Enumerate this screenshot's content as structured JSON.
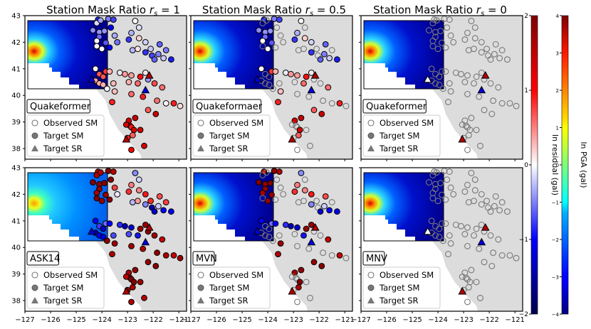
{
  "chart_data": {
    "type": "scatter",
    "description_axes": {
      "xlim": [
        -127,
        -120.7
      ],
      "ylim": [
        37.6,
        43
      ],
      "x_ticks": [
        "−127",
        "−126",
        "−125",
        "−124",
        "−123",
        "−122",
        "−121"
      ],
      "y_ticks": [
        "38",
        "39",
        "40",
        "41",
        "42",
        "43"
      ],
      "x_tick_values": [
        -127,
        -126,
        -125,
        -124,
        -123,
        -122,
        -121
      ],
      "y_tick_values": [
        38,
        39,
        40,
        41,
        42,
        43
      ]
    },
    "column_titles": [
      "Station Mask Ratio r_s = 1",
      "Station Mask Ratio r_s = 0.5",
      "Station Mask Ratio r_s = 0"
    ],
    "column_title_parts": [
      {
        "prefix": "Station Mask Ratio ",
        "var": "r",
        "sub": "s",
        "suffix": " = 1"
      },
      {
        "prefix": "Station Mask Ratio ",
        "var": "r",
        "sub": "s",
        "suffix": " = 0.5"
      },
      {
        "prefix": "Station Mask Ratio ",
        "var": "r",
        "sub": "s",
        "suffix": " = 0"
      }
    ],
    "panel_labels": [
      [
        "Quakeformer",
        "Quakeformaer",
        "Quakeformer"
      ],
      [
        "ASK14",
        "MVN",
        "MNV"
      ]
    ],
    "legend": [
      "Observed SM",
      "Target SM",
      "Target SR"
    ],
    "colorbars": [
      {
        "label": "ln residual (gal)",
        "range": [
          -2,
          2
        ],
        "ticks": [
          "−2",
          "−1",
          "0",
          "1",
          "2"
        ],
        "tick_values": [
          -2,
          -1,
          0,
          1,
          2
        ],
        "colormap": "seismic"
      },
      {
        "label": "ln PGA (gal)",
        "range": [
          -4,
          4
        ],
        "ticks": [
          "−4",
          "−3",
          "−2",
          "−1",
          "0",
          "1",
          "2",
          "3",
          "4"
        ],
        "tick_values": [
          -4,
          -3,
          -2,
          -1,
          0,
          1,
          2,
          3,
          4
        ],
        "colormap": "jet"
      }
    ],
    "stations": [
      [
        -124.15,
        42.85
      ],
      [
        -124.2,
        42.72
      ],
      [
        -124.05,
        42.82
      ],
      [
        -123.75,
        42.88
      ],
      [
        -123.55,
        42.85
      ],
      [
        -122.7,
        42.8
      ],
      [
        -122.55,
        42.55
      ],
      [
        -124.35,
        42.45
      ],
      [
        -124.1,
        42.38
      ],
      [
        -123.9,
        42.42
      ],
      [
        -123.65,
        42.55
      ],
      [
        -123.5,
        42.25
      ],
      [
        -122.85,
        42.35
      ],
      [
        -124.1,
        42.2
      ],
      [
        -124.2,
        42.05
      ],
      [
        -123.85,
        41.98
      ],
      [
        -123.4,
        42.0
      ],
      [
        -122.95,
        42.1
      ],
      [
        -122.55,
        42.15
      ],
      [
        -122.3,
        42.0
      ],
      [
        -124.2,
        41.85
      ],
      [
        -124.0,
        41.75
      ],
      [
        -123.7,
        41.8
      ],
      [
        -122.8,
        41.7
      ],
      [
        -122.6,
        41.75
      ],
      [
        -122.3,
        41.62
      ],
      [
        -122.1,
        41.75
      ],
      [
        -121.75,
        41.92
      ],
      [
        -121.5,
        41.7
      ],
      [
        -121.8,
        41.55
      ],
      [
        -122.05,
        41.5
      ],
      [
        -121.95,
        41.35
      ],
      [
        -121.6,
        41.4
      ],
      [
        -121.3,
        41.35
      ],
      [
        -124.25,
        41.0
      ],
      [
        -124.1,
        40.8
      ],
      [
        -123.95,
        40.7
      ],
      [
        -123.85,
        40.9
      ],
      [
        -124.25,
        40.55
      ],
      [
        -124.1,
        40.45
      ],
      [
        -123.95,
        40.4
      ],
      [
        -123.7,
        40.9
      ],
      [
        -123.3,
        40.85
      ],
      [
        -123.1,
        40.8
      ],
      [
        -122.85,
        40.75
      ],
      [
        -122.5,
        40.7
      ],
      [
        -122.3,
        40.85
      ],
      [
        -122.2,
        40.6
      ],
      [
        -122.6,
        40.45
      ],
      [
        -121.95,
        40.45
      ],
      [
        -121.65,
        40.3
      ],
      [
        -123.55,
        40.45
      ],
      [
        -122.95,
        40.5
      ],
      [
        -123.8,
        40.25
      ],
      [
        -123.5,
        40.15
      ],
      [
        -122.85,
        40.05
      ],
      [
        -122.4,
        39.95
      ],
      [
        -121.85,
        39.8
      ],
      [
        -121.5,
        39.7
      ],
      [
        -121.2,
        39.7
      ],
      [
        -123.6,
        39.75
      ],
      [
        -122.2,
        39.45
      ],
      [
        -121.9,
        39.3
      ],
      [
        -122.7,
        39.15
      ],
      [
        -122.95,
        39.05
      ],
      [
        -122.9,
        38.85
      ],
      [
        -122.85,
        38.8
      ],
      [
        -123.05,
        38.9
      ],
      [
        -122.75,
        38.7
      ],
      [
        -122.5,
        38.7
      ],
      [
        -122.8,
        38.5
      ],
      [
        -123.0,
        38.4
      ],
      [
        -122.85,
        37.95
      ],
      [
        -122.35,
        38.1
      ],
      [
        -120.95,
        39.6
      ]
    ],
    "residual_panels": [
      {
        "row": 0,
        "col": 0,
        "observed_fraction": 0.0,
        "residuals_ln_gal": "mixed −2 to 2 (all stations predicted)"
      },
      {
        "row": 0,
        "col": 1,
        "observed_fraction": 0.5
      },
      {
        "row": 0,
        "col": 2,
        "observed_fraction": 1.0
      },
      {
        "row": 1,
        "col": 0,
        "observed_fraction": 0.0
      },
      {
        "row": 1,
        "col": 1,
        "observed_fraction": 0.5
      },
      {
        "row": 1,
        "col": 2,
        "observed_fraction": 1.0
      }
    ],
    "target_sr": [
      [
        -123.05,
        38.35
      ],
      [
        -122.3,
        40.2
      ],
      [
        -122.15,
        40.75
      ],
      [
        -124.4,
        40.6
      ]
    ]
  }
}
